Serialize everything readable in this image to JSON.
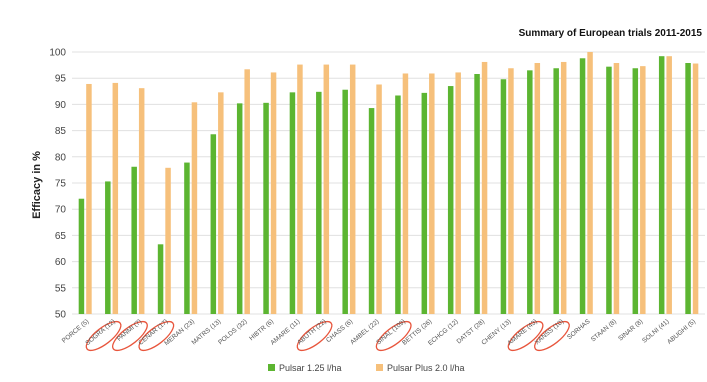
{
  "chart_data": {
    "type": "bar",
    "title": "Summary of European trials 2011-2015",
    "xlabel": "",
    "ylabel": "Efficacy in %",
    "ylim": [
      50,
      100
    ],
    "yticks": [
      50,
      55,
      60,
      65,
      70,
      75,
      80,
      85,
      90,
      95,
      100
    ],
    "grid": true,
    "legend_position": "bottom",
    "categories": [
      "PORCE (5)",
      "SOGRA (12)",
      "PANMI (7)",
      "CENAR (17)",
      "MERAN (23)",
      "MATRS (13)",
      "POLDS (32)",
      "HIBTR (6)",
      "AMARE (11)",
      "ABUTH (22)",
      "CHASS (6)",
      "AMBEL (22)",
      "SINAL (109)",
      "BETTIS (26)",
      "ECHCG (12)",
      "DATST (28)",
      "CHENY (13)",
      "AMARE (43)",
      "XANSS (10)",
      "SORHAS",
      "STAAN (8)",
      "SINAR (8)",
      "SOLNI (41)",
      "ABUGHI (5)"
    ],
    "series": [
      {
        "name": "Pulsar 1.25 l/ha",
        "color": "#5cb531",
        "values": [
          72,
          75.3,
          78.1,
          63.3,
          78.9,
          84.3,
          90.2,
          90.3,
          92.3,
          92.4,
          92.8,
          89.3,
          91.7,
          92.2,
          93.5,
          95.8,
          94.8,
          96.5,
          96.9,
          98.8,
          97.2,
          96.9,
          99.2,
          97.9
        ]
      },
      {
        "name": "Pulsar Plus 2.0 l/ha",
        "color": "#f6c07b",
        "values": [
          93.9,
          94.1,
          93.1,
          77.9,
          90.4,
          92.3,
          96.7,
          96.1,
          97.6,
          97.6,
          97.6,
          93.8,
          95.9,
          95.9,
          96.1,
          98.1,
          96.9,
          97.9,
          98.1,
          100,
          97.9,
          97.3,
          99.2,
          97.8
        ]
      }
    ],
    "circled_categories": [
      "SOGRA (12)",
      "PANMI (7)",
      "CENAR (17)",
      "ABUTH (22)",
      "SINAL (109)",
      "AMARE (43)",
      "XANSS (10)"
    ],
    "circle_color": "#e8553c",
    "grid_color": "#e0e0e0"
  }
}
